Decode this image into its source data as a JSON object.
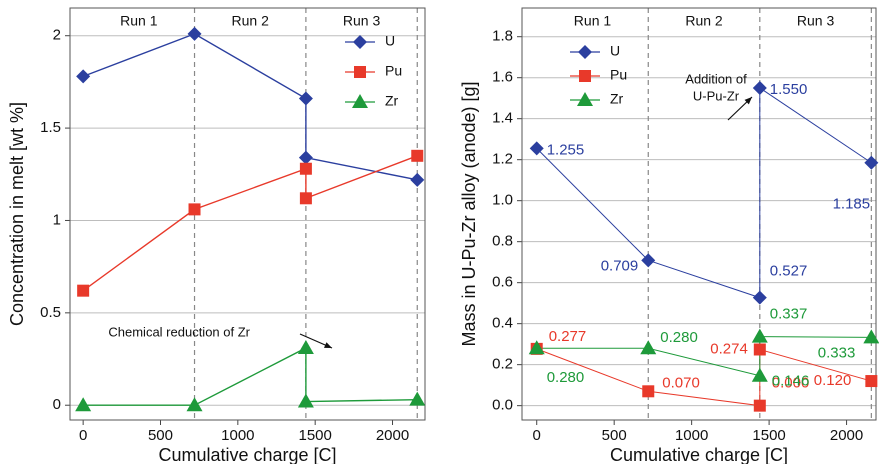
{
  "chart_data": [
    {
      "type": "line",
      "xlabel": "Cumulative charge [C]",
      "ylabel": "Concentration in melt [wt %]",
      "xlim": [
        -85,
        2210
      ],
      "ylim": [
        -0.08,
        2.15
      ],
      "xticks": [
        0,
        500,
        1000,
        1500,
        2000
      ],
      "yticks": [
        0,
        0.5,
        1,
        1.5,
        2
      ],
      "grid": true,
      "legend": "upper right",
      "runs": [
        "Run 1",
        "Run 2",
        "Run 3"
      ],
      "run_boundaries": [
        720,
        1440,
        2160
      ],
      "annotations": [
        "Chemical reduction of Zr"
      ],
      "series": [
        {
          "name": "U",
          "color": "#2b3f9f",
          "marker": "diamond",
          "x": [
            0,
            720,
            1440,
            1440,
            2160
          ],
          "values": [
            1.78,
            2.01,
            1.66,
            1.34,
            1.22
          ]
        },
        {
          "name": "Pu",
          "color": "#e8392a",
          "marker": "square",
          "x": [
            0,
            720,
            1440,
            1440,
            2160
          ],
          "values": [
            0.62,
            1.06,
            1.28,
            1.12,
            1.35
          ]
        },
        {
          "name": "Zr",
          "color": "#1e9a3a",
          "marker": "triangle",
          "x": [
            0,
            720,
            1440,
            1440,
            2160
          ],
          "values": [
            0,
            0,
            0.31,
            0.02,
            0.03
          ]
        }
      ]
    },
    {
      "type": "line",
      "xlabel": "Cumulative charge [C]",
      "ylabel": "Mass in U-Pu-Zr alloy (anode) [g]",
      "xlim": [
        -95,
        2190
      ],
      "ylim": [
        -0.07,
        1.94
      ],
      "xticks": [
        0,
        500,
        1000,
        1500,
        2000
      ],
      "yticks": [
        {
          "value": 0,
          "label": "0.0"
        },
        0.2,
        0.4,
        0.6,
        0.8,
        {
          "value": 1,
          "label": "1.0"
        },
        1.2,
        1.4,
        1.6,
        1.8
      ],
      "grid": true,
      "legend": "upper left",
      "runs": [
        "Run 1",
        "Run 2",
        "Run 3"
      ],
      "run_boundaries": [
        720,
        1440,
        2160
      ],
      "annotations": [
        [
          "Addition of",
          "U-Pu-Zr"
        ]
      ],
      "series": [
        {
          "name": "U",
          "color": "#2b3f9f",
          "marker": "diamond",
          "x": [
            0,
            720,
            1440,
            1440,
            2160
          ],
          "values": [
            1.255,
            0.709,
            0.527,
            1.55,
            1.185
          ],
          "value_labels": [
            "1.255",
            "0.709",
            "0.527",
            "1.550",
            "1.185"
          ]
        },
        {
          "name": "Pu",
          "color": "#e8392a",
          "marker": "square",
          "x": [
            0,
            720,
            1440,
            1440,
            2160
          ],
          "values": [
            0.277,
            0.07,
            0,
            0.274,
            0.12
          ],
          "value_labels": [
            "0.277",
            "0.070",
            "0.000",
            "0.274",
            "0.120"
          ]
        },
        {
          "name": "Zr",
          "color": "#1e9a3a",
          "marker": "triangle",
          "x": [
            0,
            720,
            1440,
            1440,
            2160
          ],
          "values": [
            0.28,
            0.28,
            0.146,
            0.337,
            0.333
          ],
          "value_labels": [
            "0.280",
            "0.280",
            "0.146",
            "0.337",
            "0.333"
          ]
        }
      ]
    }
  ]
}
